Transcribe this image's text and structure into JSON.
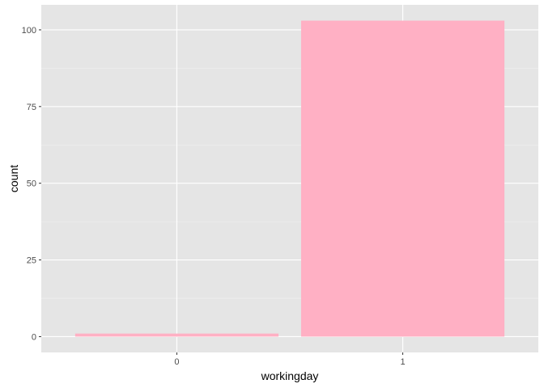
{
  "chart_data": {
    "type": "bar",
    "categories": [
      "0",
      "1"
    ],
    "values": [
      1,
      103
    ],
    "xlabel": "workingday",
    "ylabel": "count",
    "ylim": [
      -5.15,
      108.15
    ],
    "yticks": [
      0,
      25,
      50,
      75,
      100
    ],
    "grid": true,
    "colors": {
      "bar": "#ffb0c4",
      "panel_background": "#e5e5e5",
      "grid_major": "#ffffff",
      "grid_minor": "#f2f2f2",
      "tick": "#333333",
      "tick_label": "#4d4d4d",
      "axis_title": "#000000"
    }
  }
}
